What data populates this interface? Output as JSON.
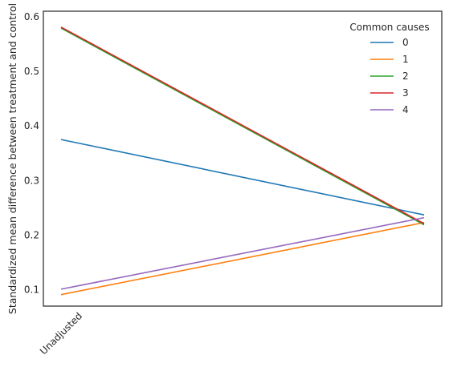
{
  "chart_data": {
    "type": "line",
    "title": "",
    "xlabel": "",
    "ylabel": "Standardized mean difference between treatment and control",
    "categories": [
      "Unadjusted",
      ""
    ],
    "ylim": [
      0.07,
      0.61
    ],
    "yticks": [
      0.1,
      0.2,
      0.3,
      0.4,
      0.5,
      0.6
    ],
    "ytick_labels": [
      "0.1",
      "0.2",
      "0.3",
      "0.4",
      "0.5",
      "0.6"
    ],
    "grid": false,
    "legend": {
      "title": "Common causes",
      "position": "top-right"
    },
    "series": [
      {
        "name": "0",
        "color": "#1f77b4",
        "values": [
          0.375,
          0.237
        ]
      },
      {
        "name": "1",
        "color": "#ff7f0e",
        "values": [
          0.091,
          0.223
        ]
      },
      {
        "name": "2",
        "color": "#2ca02c",
        "values": [
          0.579,
          0.219
        ]
      },
      {
        "name": "3",
        "color": "#d62728",
        "values": [
          0.581,
          0.221
        ]
      },
      {
        "name": "4",
        "color": "#9467bd",
        "values": [
          0.101,
          0.232
        ]
      }
    ]
  }
}
